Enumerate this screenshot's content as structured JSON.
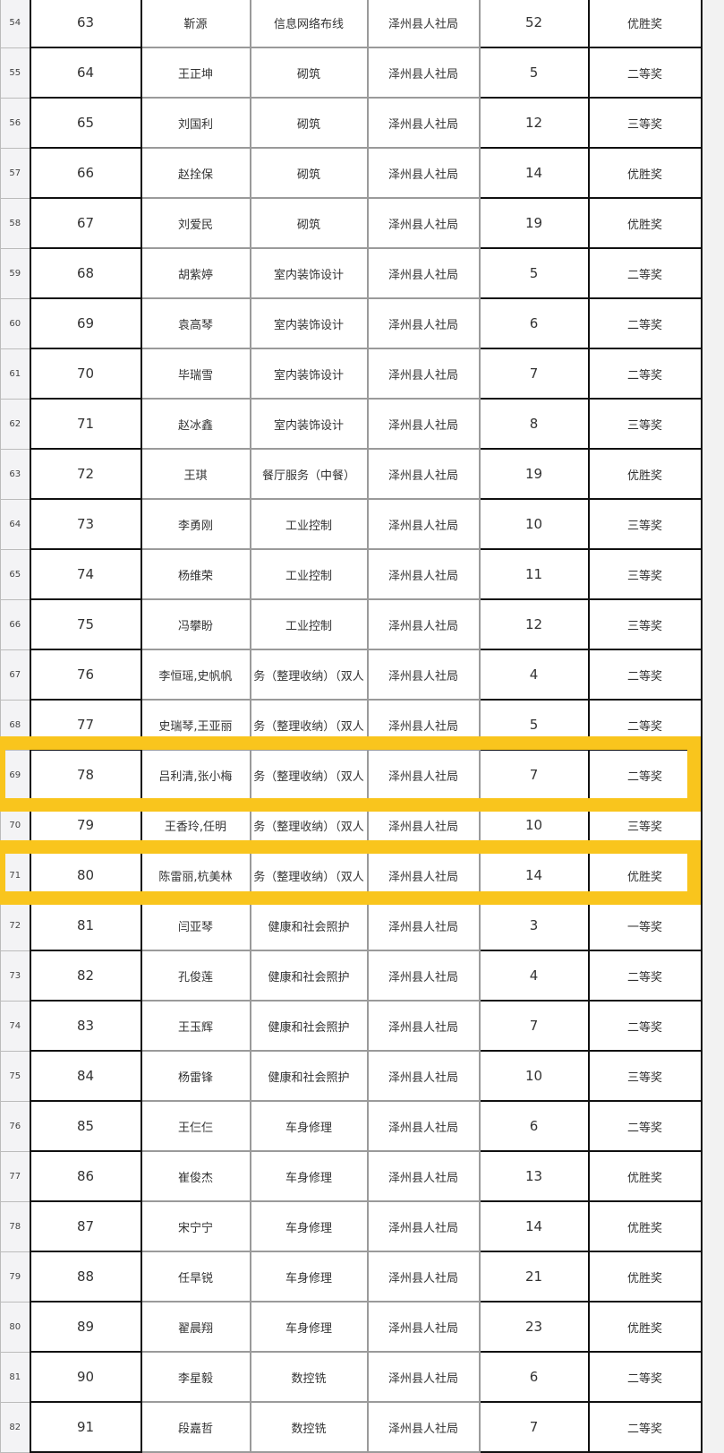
{
  "highlight_color": "#f9c51d",
  "highlighted_rows": [
    69,
    71
  ],
  "rows": [
    [
      "54",
      "63",
      "靳源",
      "信息网络布线",
      "泽州县人社局",
      "52",
      "优胜奖"
    ],
    [
      "55",
      "64",
      "王正坤",
      "砌筑",
      "泽州县人社局",
      "5",
      "二等奖"
    ],
    [
      "56",
      "65",
      "刘国利",
      "砌筑",
      "泽州县人社局",
      "12",
      "三等奖"
    ],
    [
      "57",
      "66",
      "赵拴保",
      "砌筑",
      "泽州县人社局",
      "14",
      "优胜奖"
    ],
    [
      "58",
      "67",
      "刘爱民",
      "砌筑",
      "泽州县人社局",
      "19",
      "优胜奖"
    ],
    [
      "59",
      "68",
      "胡紫婷",
      "室内装饰设计",
      "泽州县人社局",
      "5",
      "二等奖"
    ],
    [
      "60",
      "69",
      "袁高琴",
      "室内装饰设计",
      "泽州县人社局",
      "6",
      "二等奖"
    ],
    [
      "61",
      "70",
      "毕瑞雪",
      "室内装饰设计",
      "泽州县人社局",
      "7",
      "二等奖"
    ],
    [
      "62",
      "71",
      "赵冰鑫",
      "室内装饰设计",
      "泽州县人社局",
      "8",
      "三等奖"
    ],
    [
      "63",
      "72",
      "王琪",
      "餐厅服务（中餐）",
      "泽州县人社局",
      "19",
      "优胜奖"
    ],
    [
      "64",
      "73",
      "李勇刚",
      "工业控制",
      "泽州县人社局",
      "10",
      "三等奖"
    ],
    [
      "65",
      "74",
      "杨维荣",
      "工业控制",
      "泽州县人社局",
      "11",
      "三等奖"
    ],
    [
      "66",
      "75",
      "冯攀盼",
      "工业控制",
      "泽州县人社局",
      "12",
      "三等奖"
    ],
    [
      "67",
      "76",
      "李恒瑶,史帆帆",
      "务（整理收纳）（双人",
      "泽州县人社局",
      "4",
      "二等奖"
    ],
    [
      "68",
      "77",
      "史瑞琴,王亚丽",
      "务（整理收纳）（双人",
      "泽州县人社局",
      "5",
      "二等奖"
    ],
    [
      "69",
      "78",
      "吕利清,张小梅",
      "务（整理收纳）（双人",
      "泽州县人社局",
      "7",
      "二等奖"
    ],
    [
      "70",
      "79",
      "王香玲,任明",
      "务（整理收纳）（双人",
      "泽州县人社局",
      "10",
      "三等奖"
    ],
    [
      "71",
      "80",
      "陈雷丽,杭美林",
      "务（整理收纳）（双人",
      "泽州县人社局",
      "14",
      "优胜奖"
    ],
    [
      "72",
      "81",
      "闫亚琴",
      "健康和社会照护",
      "泽州县人社局",
      "3",
      "一等奖"
    ],
    [
      "73",
      "82",
      "孔俊莲",
      "健康和社会照护",
      "泽州县人社局",
      "4",
      "二等奖"
    ],
    [
      "74",
      "83",
      "王玉辉",
      "健康和社会照护",
      "泽州县人社局",
      "7",
      "二等奖"
    ],
    [
      "75",
      "84",
      "杨雷锋",
      "健康和社会照护",
      "泽州县人社局",
      "10",
      "三等奖"
    ],
    [
      "76",
      "85",
      "王仨仨",
      "车身修理",
      "泽州县人社局",
      "6",
      "二等奖"
    ],
    [
      "77",
      "86",
      "崔俊杰",
      "车身修理",
      "泽州县人社局",
      "13",
      "优胜奖"
    ],
    [
      "78",
      "87",
      "宋宁宁",
      "车身修理",
      "泽州县人社局",
      "14",
      "优胜奖"
    ],
    [
      "79",
      "88",
      "任旱锐",
      "车身修理",
      "泽州县人社局",
      "21",
      "优胜奖"
    ],
    [
      "80",
      "89",
      "翟晨翔",
      "车身修理",
      "泽州县人社局",
      "23",
      "优胜奖"
    ],
    [
      "81",
      "90",
      "李星毅",
      "数控铣",
      "泽州县人社局",
      "6",
      "二等奖"
    ],
    [
      "82",
      "91",
      "段嘉哲",
      "数控铣",
      "泽州县人社局",
      "7",
      "二等奖"
    ]
  ]
}
